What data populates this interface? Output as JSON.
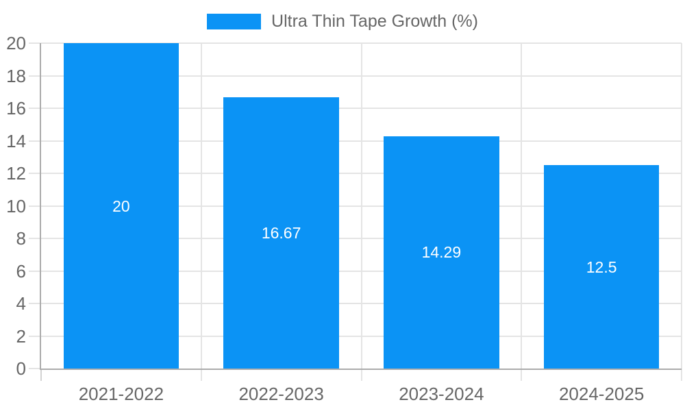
{
  "chart_data": {
    "type": "bar",
    "title": "",
    "legend": "Ultra Thin Tape Growth (%)",
    "legend_position": "top",
    "categories": [
      "2021-2022",
      "2022-2023",
      "2023-2024",
      "2024-2025"
    ],
    "values": [
      20,
      16.67,
      14.29,
      12.5
    ],
    "value_labels": [
      "20",
      "16.67",
      "14.29",
      "12.5"
    ],
    "xlabel": "",
    "ylabel": "",
    "ylim": [
      0,
      20
    ],
    "ytick_step": 2,
    "yticks": [
      0,
      2,
      4,
      6,
      8,
      10,
      12,
      14,
      16,
      18,
      20
    ],
    "grid": true,
    "colors": {
      "bar": "#0b93f5",
      "grid": "#e4e4e4",
      "tick": "#d2d2d2",
      "axis_border": "#ababab",
      "tick_text": "#666666",
      "bar_label": "#ffffff",
      "background": "#ffffff"
    }
  }
}
